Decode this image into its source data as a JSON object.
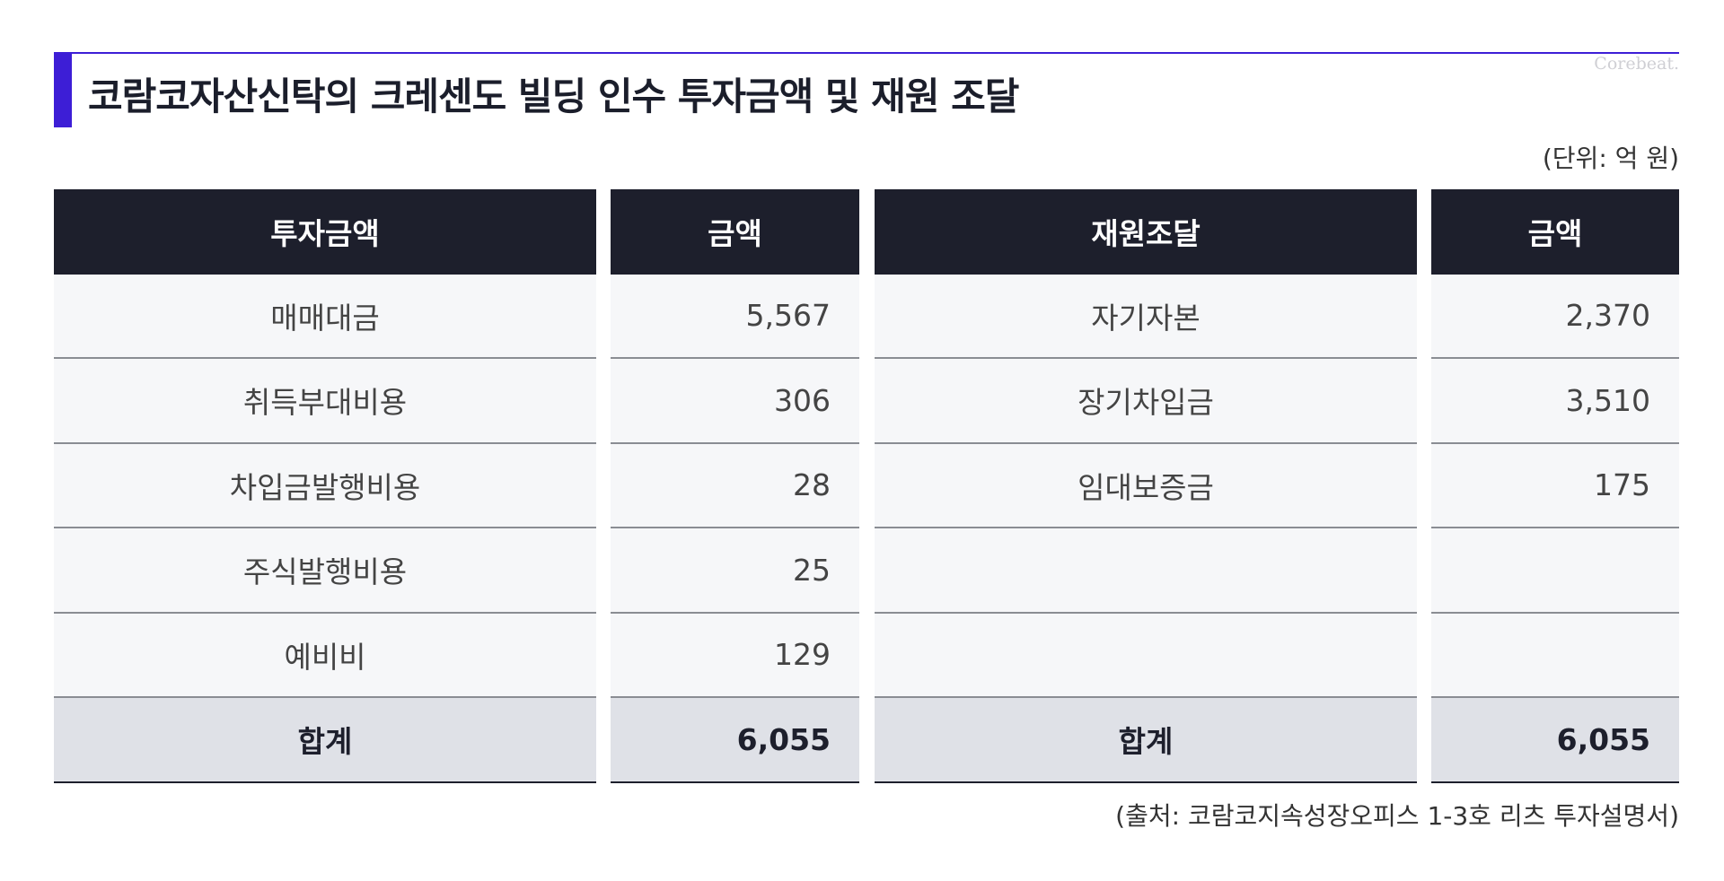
{
  "title": "코람코자산신탁의 크레센도 빌딩 인수 투자금액 및 재원 조달",
  "logo": "Corebeat.",
  "unit": "(단위: 억 원)",
  "source": "(출처: 코람코지속성장오피스 1-3호 리츠 투자설명서)",
  "colors": {
    "accent": "#3d1ed6",
    "header_bg": "#1d1f2c",
    "total_bg": "#dfe1e7"
  },
  "table": {
    "headers": [
      "투자금액",
      "금액",
      "재원조달",
      "금액"
    ],
    "investment": [
      {
        "item": "매매대금",
        "amount": "5,567"
      },
      {
        "item": "취득부대비용",
        "amount": "306"
      },
      {
        "item": "차입금발행비용",
        "amount": "28"
      },
      {
        "item": "주식발행비용",
        "amount": "25"
      },
      {
        "item": "예비비",
        "amount": "129"
      }
    ],
    "funding": [
      {
        "item": "자기자본",
        "amount": "2,370"
      },
      {
        "item": "장기차입금",
        "amount": "3,510"
      },
      {
        "item": "임대보증금",
        "amount": "175"
      },
      {
        "item": "",
        "amount": ""
      },
      {
        "item": "",
        "amount": ""
      }
    ],
    "total": {
      "label_left": "합계",
      "amount_left": "6,055",
      "label_right": "합계",
      "amount_right": "6,055"
    }
  }
}
